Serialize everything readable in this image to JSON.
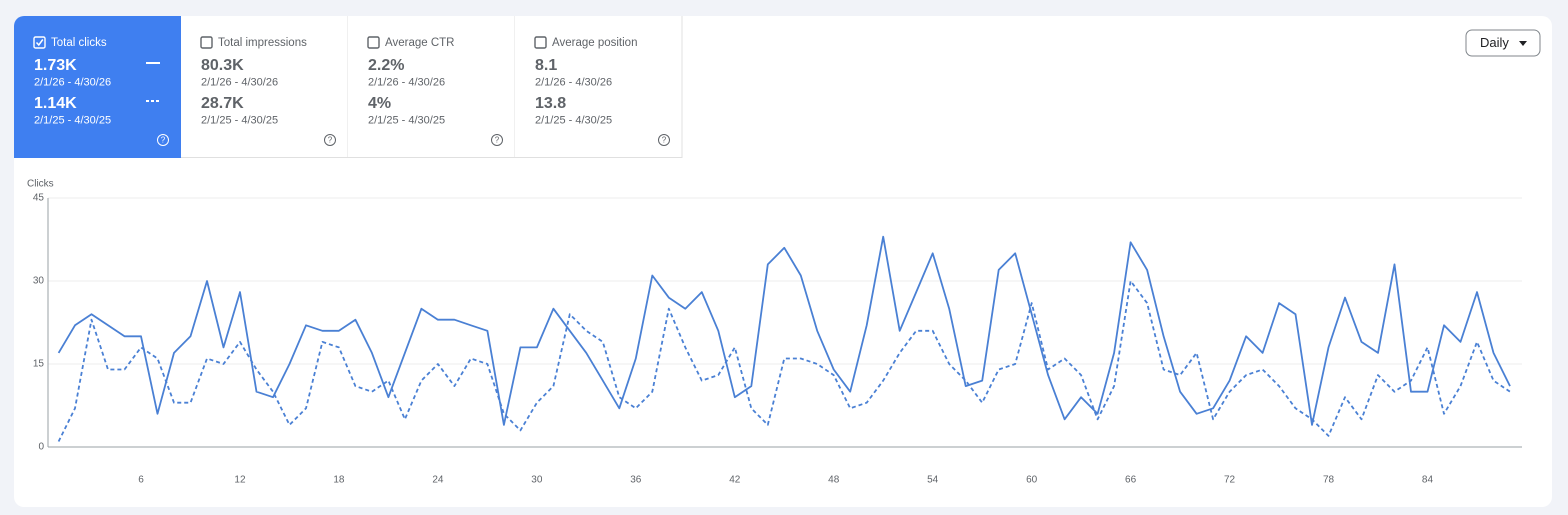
{
  "cards": [
    {
      "label": "Total clicks",
      "value1": "1.73K",
      "range1": "2/1/26 - 4/30/26",
      "value2": "1.14K",
      "range2": "2/1/25 - 4/30/25",
      "checked": true
    },
    {
      "label": "Total impressions",
      "value1": "80.3K",
      "range1": "2/1/26 - 4/30/26",
      "value2": "28.7K",
      "range2": "2/1/25 - 4/30/25",
      "checked": false
    },
    {
      "label": "Average CTR",
      "value1": "2.2%",
      "range1": "2/1/26 - 4/30/26",
      "value2": "4%",
      "range2": "2/1/25 - 4/30/25",
      "checked": false
    },
    {
      "label": "Average position",
      "value1": "8.1",
      "range1": "2/1/26 - 4/30/26",
      "value2": "13.8",
      "range2": "2/1/25 - 4/30/25",
      "checked": false
    }
  ],
  "dropdown": "Daily",
  "chart_data": {
    "type": "line",
    "y_label": "Clicks",
    "x": [
      1,
      2,
      3,
      4,
      5,
      6,
      7,
      8,
      9,
      10,
      11,
      12,
      13,
      14,
      15,
      16,
      17,
      18,
      19,
      20,
      21,
      22,
      23,
      24,
      25,
      26,
      27,
      28,
      29,
      30,
      31,
      32,
      33,
      34,
      35,
      36,
      37,
      38,
      39,
      40,
      41,
      42,
      43,
      44,
      45,
      46,
      47,
      48,
      49,
      50,
      51,
      52,
      53,
      54,
      55,
      56,
      57,
      58,
      59,
      60,
      61,
      62,
      63,
      64,
      65,
      66,
      67,
      68,
      69,
      70,
      71,
      72,
      73,
      74,
      75,
      76,
      77,
      78,
      79,
      80,
      81,
      82,
      83,
      84,
      85,
      86,
      87,
      88,
      89
    ],
    "series": [
      {
        "color": "#4a80d4",
        "dashed": false,
        "values": [
          17,
          22,
          24,
          22,
          20,
          20,
          6,
          17,
          20,
          30,
          18,
          28,
          10,
          9,
          15,
          22,
          21,
          21,
          23,
          17,
          9,
          17,
          25,
          23,
          23,
          22,
          21,
          4,
          18,
          18,
          25,
          21,
          17,
          12,
          7,
          16,
          31,
          27,
          25,
          28,
          21,
          9,
          11,
          33,
          36,
          31,
          21,
          14,
          10,
          22,
          38,
          21,
          28,
          35,
          25,
          11,
          12,
          32,
          35,
          24,
          13,
          5,
          9,
          6,
          17,
          37,
          32,
          20,
          10,
          6,
          7,
          12,
          20,
          17,
          26,
          24,
          4,
          18,
          27,
          19,
          17,
          33,
          10,
          10,
          22,
          19,
          28,
          17,
          11
        ]
      },
      {
        "color": "#4a80d4",
        "dashed": true,
        "values": [
          1,
          7,
          23,
          14,
          14,
          18,
          16,
          8,
          8,
          16,
          15,
          19,
          14,
          10,
          4,
          7,
          19,
          18,
          11,
          10,
          12,
          5,
          12,
          15,
          11,
          16,
          15,
          6,
          3,
          8,
          11,
          24,
          21,
          19,
          9,
          7,
          10,
          25,
          18,
          12,
          13,
          18,
          7,
          4,
          16,
          16,
          15,
          13,
          7,
          8,
          12,
          17,
          21,
          21,
          15,
          12,
          8,
          14,
          15,
          26,
          14,
          16,
          13,
          5,
          11,
          30,
          26,
          14,
          13,
          17,
          5,
          10,
          13,
          14,
          11,
          7,
          5,
          2,
          9,
          5,
          13,
          10,
          12,
          18,
          6,
          11,
          19,
          12,
          10
        ]
      }
    ],
    "xlim": [
      0.36,
      89.73
    ],
    "xticks": [
      6,
      12,
      18,
      24,
      30,
      36,
      42,
      48,
      54,
      60,
      66,
      72,
      78,
      84
    ],
    "ylim": [
      0,
      45
    ],
    "yticks": [
      0,
      15,
      30,
      45
    ],
    "grid": true
  }
}
